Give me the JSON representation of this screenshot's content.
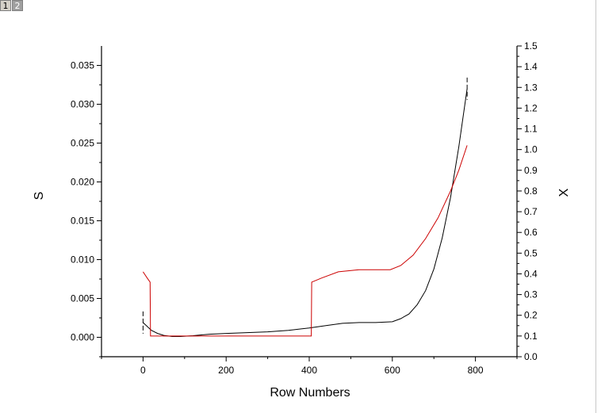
{
  "page_tabs": [
    {
      "label": "1",
      "active": true
    },
    {
      "label": "2",
      "active": false
    }
  ],
  "chart_data": {
    "type": "line",
    "title": "",
    "xlabel": "Row Numbers",
    "ylabel_left": "S",
    "ylabel_right": "X",
    "xlim": [
      -100,
      900
    ],
    "ylim_left": [
      -0.0025,
      0.0375
    ],
    "ylim_right": [
      0.0,
      1.5
    ],
    "x_ticks": [
      {
        "value": 0,
        "label": "0"
      },
      {
        "value": 200,
        "label": "200"
      },
      {
        "value": 400,
        "label": "400"
      },
      {
        "value": 600,
        "label": "600"
      },
      {
        "value": 800,
        "label": "800"
      }
    ],
    "y_left_ticks": [
      {
        "value": 0.0,
        "label": "0.000"
      },
      {
        "value": 0.005,
        "label": "0.005"
      },
      {
        "value": 0.01,
        "label": "0.010"
      },
      {
        "value": 0.015,
        "label": "0.015"
      },
      {
        "value": 0.02,
        "label": "0.020"
      },
      {
        "value": 0.025,
        "label": "0.025"
      },
      {
        "value": 0.03,
        "label": "0.030"
      },
      {
        "value": 0.035,
        "label": "0.035"
      }
    ],
    "y_right_ticks": [
      {
        "value": 0.0,
        "label": "0.0"
      },
      {
        "value": 0.1,
        "label": "0.1"
      },
      {
        "value": 0.2,
        "label": "0.2"
      },
      {
        "value": 0.3,
        "label": "0.3"
      },
      {
        "value": 0.4,
        "label": "0.4"
      },
      {
        "value": 0.5,
        "label": "0.5"
      },
      {
        "value": 0.6,
        "label": "0.6"
      },
      {
        "value": 0.7,
        "label": "0.7"
      },
      {
        "value": 0.8,
        "label": "0.8"
      },
      {
        "value": 0.9,
        "label": "0.9"
      },
      {
        "value": 1.0,
        "label": "1.0"
      },
      {
        "value": 1.1,
        "label": "1.1"
      },
      {
        "value": 1.2,
        "label": "1.2"
      },
      {
        "value": 1.3,
        "label": "1.3"
      },
      {
        "value": 1.4,
        "label": "1.4"
      },
      {
        "value": 1.5,
        "label": "1.5"
      }
    ],
    "grid": false,
    "legend": "none",
    "series": [
      {
        "axis": "left",
        "color": "#000000",
        "x": [
          0,
          10,
          20,
          35,
          50,
          70,
          90,
          120,
          160,
          200,
          250,
          300,
          350,
          400,
          440,
          480,
          520,
          560,
          600,
          620,
          640,
          660,
          680,
          700,
          720,
          740,
          760,
          780
        ],
        "y": [
          0.0019,
          0.0014,
          0.0009,
          0.0005,
          0.00025,
          0.0001,
          0.0001,
          0.0002,
          0.0004,
          0.0005,
          0.0006,
          0.0007,
          0.0009,
          0.0012,
          0.0015,
          0.0018,
          0.0019,
          0.0019,
          0.002,
          0.0024,
          0.003,
          0.0042,
          0.006,
          0.0088,
          0.0128,
          0.018,
          0.0245,
          0.032
        ]
      },
      {
        "axis": "right",
        "color": "#cc0000",
        "x": [
          0,
          10,
          17,
          18,
          100,
          200,
          300,
          400,
          405,
          406,
          430,
          470,
          520,
          570,
          595,
          620,
          650,
          680,
          710,
          740,
          760,
          780
        ],
        "y": [
          0.41,
          0.38,
          0.36,
          0.1,
          0.1,
          0.1,
          0.1,
          0.1,
          0.1,
          0.36,
          0.38,
          0.41,
          0.42,
          0.42,
          0.42,
          0.44,
          0.49,
          0.57,
          0.67,
          0.8,
          0.9,
          1.02
        ]
      }
    ]
  }
}
